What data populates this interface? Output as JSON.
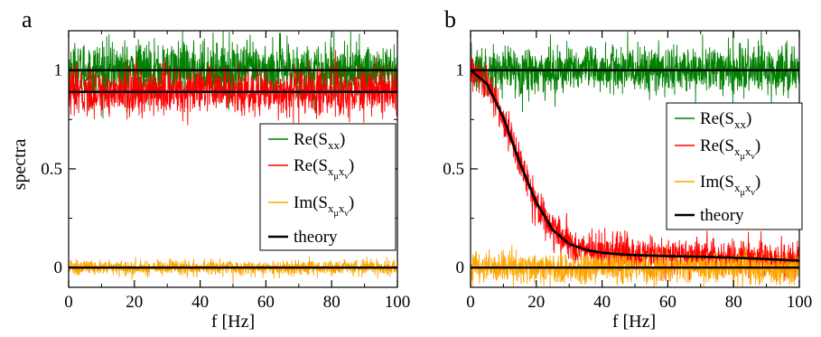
{
  "figure": {
    "ylabel": "spectra",
    "xlabel": "f [Hz]"
  },
  "chart_data": [
    {
      "panel": "a",
      "type": "line",
      "xlabel": "f [Hz]",
      "ylabel": "spectra",
      "xlim": [
        0,
        100
      ],
      "ylim": [
        -0.1,
        1.2
      ],
      "xticks": [
        0,
        20,
        40,
        60,
        80,
        100
      ],
      "yticks": [
        0,
        0.5,
        1
      ],
      "ytick_labels": [
        "0",
        "0.5",
        "1"
      ],
      "legend_position": "center-right",
      "series": [
        {
          "key": "re_sxx",
          "name": "Re(S_xx)",
          "color": "#008000",
          "kind": "noisy",
          "mean": 1.0,
          "noise": 0.07
        },
        {
          "key": "re_sxmu",
          "name": "Re(S_xμxν)",
          "color": "#ff0000",
          "kind": "noisy",
          "mean": 0.89,
          "noise": 0.06
        },
        {
          "key": "im_sxmu",
          "name": "Im(S_xμxν)",
          "color": "#ffa500",
          "kind": "noisy",
          "mean": 0.0,
          "noise": 0.02
        },
        {
          "key": "theory",
          "name": "theory",
          "color": "#000000",
          "kind": "theory",
          "x": [
            0,
            100
          ],
          "y_lines": [
            [
              1.0,
              1.0
            ],
            [
              0.89,
              0.89
            ],
            [
              0.0,
              0.0
            ]
          ]
        }
      ]
    },
    {
      "panel": "b",
      "type": "line",
      "xlabel": "f [Hz]",
      "xlim": [
        0,
        100
      ],
      "ylim": [
        -0.1,
        1.2
      ],
      "xticks": [
        0,
        20,
        40,
        60,
        80,
        100
      ],
      "yticks": [
        0,
        0.5,
        1
      ],
      "ytick_labels": [
        "0",
        "0.5",
        "1"
      ],
      "legend_position": "center-right",
      "series": [
        {
          "key": "re_sxx",
          "name": "Re(S_xx)",
          "color": "#008000",
          "kind": "noisy",
          "mean": 1.0,
          "noise": 0.06
        },
        {
          "key": "re_sxmu",
          "name": "Re(S_xμxν)",
          "color": "#ff0000",
          "kind": "noisy_curve",
          "noise": 0.045
        },
        {
          "key": "im_sxmu",
          "name": "Im(S_xμxν)",
          "color": "#ffa500",
          "kind": "noisy",
          "mean": 0.0,
          "noise": 0.04
        },
        {
          "key": "theory",
          "name": "theory",
          "color": "#000000",
          "kind": "theory",
          "x": [
            0,
            5,
            10,
            15,
            20,
            25,
            30,
            35,
            40,
            45,
            50,
            60,
            70,
            80,
            90,
            100
          ],
          "y_lines": [
            [
              1.0,
              1.0
            ],
            [
              0.0,
              0.0
            ]
          ],
          "y_curve": [
            1.0,
            0.93,
            0.76,
            0.53,
            0.33,
            0.19,
            0.12,
            0.09,
            0.075,
            0.068,
            0.063,
            0.058,
            0.055,
            0.05,
            0.043,
            0.035
          ]
        }
      ]
    }
  ],
  "panels": {
    "a": {
      "label": "a"
    },
    "b": {
      "label": "b"
    }
  },
  "legend": {
    "re_sxx": {
      "base": "Re(S",
      "sub": "xx",
      "close": ")"
    },
    "re_sxmu": {
      "base": "Re(S",
      "sub": "x",
      "subsub1": "μ",
      "sub2": "x",
      "subsub2": "ν",
      "close": ")"
    },
    "im_sxmu": {
      "base": "Im(S",
      "sub": "x",
      "subsub1": "μ",
      "sub2": "x",
      "subsub2": "ν",
      "close": ")"
    },
    "theory": {
      "label": "theory"
    }
  }
}
